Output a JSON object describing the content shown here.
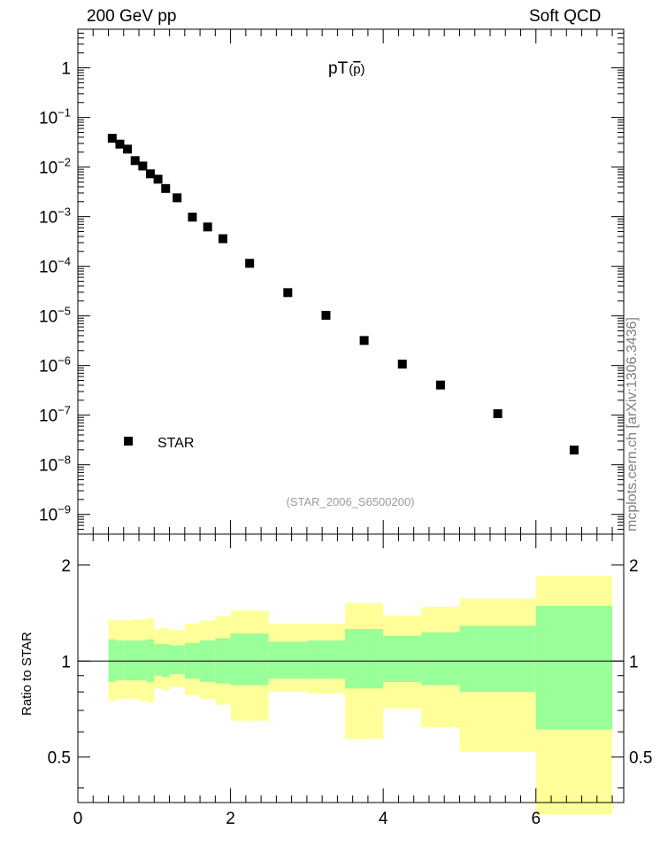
{
  "header": {
    "left": "200 GeV pp",
    "right": "Soft QCD",
    "watermark": "mcplots.cern.ch [arXiv:1306.3436]"
  },
  "chart_data": [
    {
      "type": "scatter",
      "title": "pT(p̄)",
      "title_main": "pT",
      "title_particle": "p",
      "subtitle": "(STAR_2006_S6500200)",
      "ylabel": "",
      "xlabel": "",
      "yscale": "log",
      "ylim": [
        4e-10,
        6
      ],
      "xlim": [
        0,
        7.15
      ],
      "y_tick_labels": [
        {
          "base": "1",
          "exp": ""
        },
        {
          "base": "10",
          "exp": "−1"
        },
        {
          "base": "10",
          "exp": "−2"
        },
        {
          "base": "10",
          "exp": "−3"
        },
        {
          "base": "10",
          "exp": "−4"
        },
        {
          "base": "10",
          "exp": "−5"
        },
        {
          "base": "10",
          "exp": "−6"
        },
        {
          "base": "10",
          "exp": "−7"
        },
        {
          "base": "10",
          "exp": "−8"
        },
        {
          "base": "10",
          "exp": "−9"
        }
      ],
      "legend": {
        "entries": [
          "STAR"
        ],
        "position": "bottom-left"
      },
      "series": [
        {
          "name": "STAR",
          "x": [
            0.45,
            0.55,
            0.65,
            0.75,
            0.85,
            0.95,
            1.05,
            1.15,
            1.3,
            1.5,
            1.7,
            1.9,
            2.25,
            2.75,
            3.25,
            3.75,
            4.25,
            4.75,
            5.5,
            6.5
          ],
          "y": [
            0.038,
            0.029,
            0.023,
            0.0135,
            0.0105,
            0.0073,
            0.0057,
            0.0037,
            0.0024,
            0.00098,
            0.00062,
            0.00036,
            0.000115,
            2.95e-05,
            1.03e-05,
            3.2e-06,
            1.07e-06,
            4.05e-07,
            1.07e-07,
            1.98e-08
          ]
        }
      ]
    },
    {
      "type": "area",
      "title": "",
      "xlabel": "",
      "ylabel": "Ratio to STAR",
      "yscale": "log",
      "ylim": [
        0.36,
        2.5
      ],
      "xlim": [
        0,
        7.15
      ],
      "x_tick_labels": [
        "0",
        "2",
        "4",
        "6"
      ],
      "y_tick_labels": [
        "0.5",
        "1",
        "2"
      ],
      "reference_line": 1,
      "bands": [
        {
          "x0": 0.4,
          "x1": 0.5,
          "outer": [
            0.75,
            1.35
          ],
          "inner": [
            0.86,
            1.17
          ]
        },
        {
          "x0": 0.5,
          "x1": 0.6,
          "outer": [
            0.76,
            1.34
          ],
          "inner": [
            0.87,
            1.16
          ]
        },
        {
          "x0": 0.6,
          "x1": 0.7,
          "outer": [
            0.76,
            1.34
          ],
          "inner": [
            0.87,
            1.16
          ]
        },
        {
          "x0": 0.7,
          "x1": 0.8,
          "outer": [
            0.76,
            1.35
          ],
          "inner": [
            0.87,
            1.16
          ]
        },
        {
          "x0": 0.8,
          "x1": 0.9,
          "outer": [
            0.75,
            1.35
          ],
          "inner": [
            0.87,
            1.16
          ]
        },
        {
          "x0": 0.9,
          "x1": 1.0,
          "outer": [
            0.74,
            1.36
          ],
          "inner": [
            0.86,
            1.17
          ]
        },
        {
          "x0": 1.0,
          "x1": 1.1,
          "outer": [
            0.82,
            1.26
          ],
          "inner": [
            0.9,
            1.13
          ]
        },
        {
          "x0": 1.1,
          "x1": 1.2,
          "outer": [
            0.81,
            1.27
          ],
          "inner": [
            0.89,
            1.13
          ]
        },
        {
          "x0": 1.2,
          "x1": 1.4,
          "outer": [
            0.83,
            1.25
          ],
          "inner": [
            0.91,
            1.12
          ]
        },
        {
          "x0": 1.4,
          "x1": 1.6,
          "outer": [
            0.78,
            1.31
          ],
          "inner": [
            0.88,
            1.14
          ]
        },
        {
          "x0": 1.6,
          "x1": 1.8,
          "outer": [
            0.76,
            1.34
          ],
          "inner": [
            0.86,
            1.16
          ]
        },
        {
          "x0": 1.8,
          "x1": 2.0,
          "outer": [
            0.73,
            1.38
          ],
          "inner": [
            0.85,
            1.18
          ]
        },
        {
          "x0": 2.0,
          "x1": 2.5,
          "outer": [
            0.65,
            1.44
          ],
          "inner": [
            0.84,
            1.22
          ]
        },
        {
          "x0": 2.5,
          "x1": 3.0,
          "outer": [
            0.8,
            1.31
          ],
          "inner": [
            0.88,
            1.15
          ]
        },
        {
          "x0": 3.0,
          "x1": 3.5,
          "outer": [
            0.79,
            1.31
          ],
          "inner": [
            0.88,
            1.16
          ]
        },
        {
          "x0": 3.5,
          "x1": 4.0,
          "outer": [
            0.57,
            1.52
          ],
          "inner": [
            0.82,
            1.26
          ]
        },
        {
          "x0": 4.0,
          "x1": 4.5,
          "outer": [
            0.71,
            1.39
          ],
          "inner": [
            0.86,
            1.2
          ]
        },
        {
          "x0": 4.5,
          "x1": 5.0,
          "outer": [
            0.62,
            1.48
          ],
          "inner": [
            0.84,
            1.23
          ]
        },
        {
          "x0": 5.0,
          "x1": 6.0,
          "outer": [
            0.52,
            1.57
          ],
          "inner": [
            0.8,
            1.29
          ]
        },
        {
          "x0": 6.0,
          "x1": 7.0,
          "outer": [
            0.33,
            1.85
          ],
          "inner": [
            0.61,
            1.49
          ]
        }
      ],
      "colors": {
        "outer": "#ffff99",
        "inner": "#99ff99"
      }
    }
  ]
}
